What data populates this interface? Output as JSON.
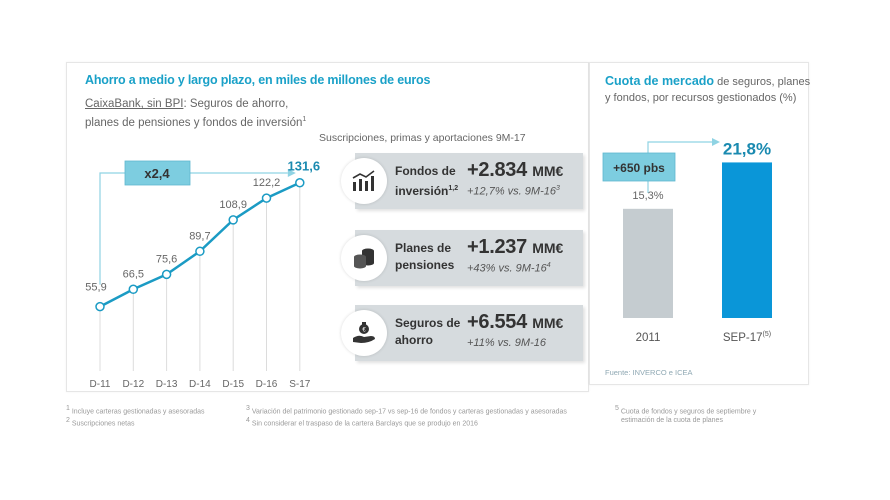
{
  "left_panel": {
    "title": "Ahorro a medio y largo plazo, en miles de millones de euros",
    "subtitle_underlined": "CaixaBank, sin BPI",
    "subtitle_rest_line1": ": Seguros de ahorro,",
    "subtitle_line2": "planes de pensiones y fondos  de inversión",
    "subtitle_sup": "1",
    "multiplier_label": "x2,4",
    "cards_heading": "Suscripciones, primas y aportaciones 9M-17",
    "cards": [
      {
        "label_line1": "Fondos de",
        "label_line2": "inversión",
        "label_sup": "1,2",
        "value": "+2.834",
        "unit": "MM€",
        "delta": "+12,7% vs. 9M-16",
        "delta_sup": "3",
        "icon": "bar-chart-trend-icon"
      },
      {
        "label_line1": "Planes de",
        "label_line2": "pensiones",
        "label_sup": "",
        "value": "+1.237",
        "unit": "MM€",
        "delta": "+43% vs. 9M-16",
        "delta_sup": "4",
        "icon": "coins-stack-icon"
      },
      {
        "label_line1": "Seguros de",
        "label_line2": "ahorro",
        "label_sup": "",
        "value": "+6.554",
        "unit": "MM€",
        "delta": "+11% vs. 9M-16",
        "delta_sup": "",
        "icon": "hand-money-bag-icon"
      }
    ]
  },
  "right_panel": {
    "title_bold": "Cuota de mercado",
    "title_rest_line1": " de seguros, planes",
    "title_line2": "y fondos, por recursos  gestionados (%)",
    "change_label": "+650 pbs",
    "source": "Fuente: INVERCO e ICEA"
  },
  "footnotes": [
    {
      "num": "1",
      "text": "Incluye carteras gestionadas y asesoradas"
    },
    {
      "num": "2",
      "text": "Suscripciones netas"
    },
    {
      "num": "3",
      "text": "Variación del patrimonio gestionado sep-17 vs sep-16 de fondos y carteras gestionadas y asesoradas"
    },
    {
      "num": "4",
      "text": "Sin considerar el traspaso de la cartera Barclays que se produjo en 2016"
    },
    {
      "num": "5",
      "text": "Cuota de fondos y seguros de septiembre y"
    },
    {
      "num": "",
      "text": "estimación de la cuota de planes"
    }
  ],
  "colors": {
    "accent": "#1aa1c8",
    "line": "#1b9bc4",
    "bar_2011": "#c5ccd0",
    "bar_sep17": "#0a96d8",
    "card_bg": "#d6dbde",
    "tag_bg": "#7dcde0"
  },
  "chart_data": [
    {
      "type": "line",
      "title": "Ahorro a medio y largo plazo, en miles de millones de euros",
      "categories": [
        "D-11",
        "D-12",
        "D-13",
        "D-14",
        "D-15",
        "D-16",
        "S-17"
      ],
      "values": [
        55.9,
        66.5,
        75.6,
        89.7,
        108.9,
        122.2,
        131.6
      ],
      "value_labels": [
        "55,9",
        "66,5",
        "75,6",
        "89,7",
        "108,9",
        "122,2",
        "131,6"
      ],
      "annotation": "x2,4",
      "ylim": [
        30,
        140
      ],
      "grid": "vertical drop lines"
    },
    {
      "type": "bar",
      "title": "Cuota de mercado de seguros, planes y fondos, por recursos gestionados (%)",
      "categories": [
        "2011",
        "SEP-17"
      ],
      "category_sup": [
        "",
        "(5)"
      ],
      "values": [
        15.3,
        21.8
      ],
      "value_labels": [
        "15,3%",
        "21,8%"
      ],
      "annotation": "+650 pbs",
      "ylim": [
        0,
        22
      ]
    }
  ]
}
